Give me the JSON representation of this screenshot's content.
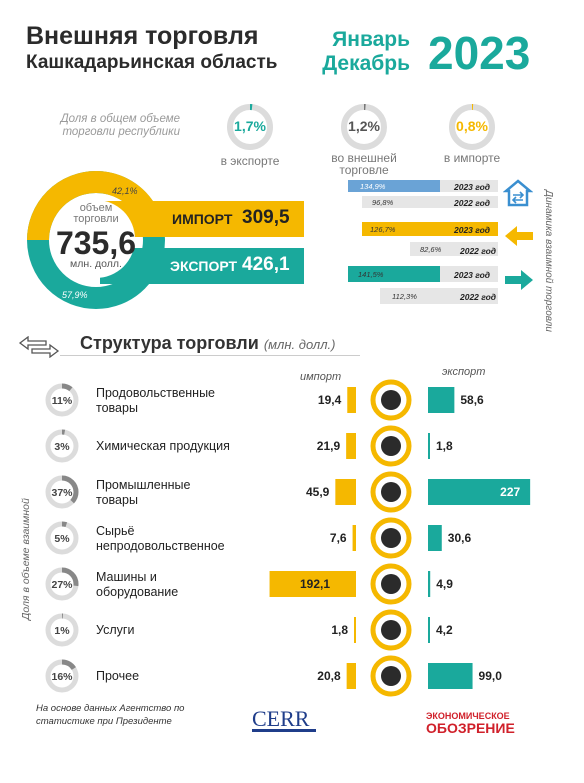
{
  "header": {
    "title_line1": "Внешняя торговля",
    "title_line2": "Кашкадарьинская область",
    "period_line1": "Январь",
    "period_line2": "Декабрь",
    "year": "2023"
  },
  "share": {
    "caption": "Доля в общем объеме торговли республики",
    "items": [
      {
        "value": "1,7%",
        "label": "в экспорте"
      },
      {
        "value": "1,2%",
        "label": "во внешней торговле"
      },
      {
        "value": "0,8%",
        "label": "в импорте"
      }
    ]
  },
  "donut": {
    "center_caption": "объем торговли",
    "center_value": "735,6",
    "center_unit": "млн. долл.",
    "import_pct": "42,1%",
    "export_pct": "57,9%",
    "import_label": "ИМПОРТ",
    "import_value": "309,5",
    "export_label": "ЭКСПОРТ",
    "export_value": "426,1",
    "colors": {
      "import": "#f5b800",
      "export": "#1aa99c"
    }
  },
  "dynamics": {
    "caption": "Динамика взаимной торговли",
    "groups": [
      {
        "name": "total",
        "y2023_pct": "134,9%",
        "y2023_label": "2023 год",
        "y2022_pct": "96,8%",
        "y2022_label": "2022 год"
      },
      {
        "name": "import",
        "y2023_pct": "126,7%",
        "y2023_label": "2023 год",
        "y2022_pct": "82,6%",
        "y2022_label": "2022 год"
      },
      {
        "name": "export",
        "y2023_pct": "141,5%",
        "y2023_label": "2023 год",
        "y2022_pct": "112,3%",
        "y2022_label": "2022 год"
      }
    ]
  },
  "structure": {
    "title": "Структура торговли",
    "unit": "(млн. долл.)",
    "import_header": "импорт",
    "export_header": "экспорт",
    "share_caption": "Доля в объеме взаимной"
  },
  "chart_data": {
    "type": "bar",
    "title": "Структура торговли",
    "unit": "млн. долл.",
    "categories": [
      "Продовольственные товары",
      "Химическая продукция",
      "Промышленные товары",
      "Сырьё непродовольственное",
      "Машины и оборудование",
      "Услуги",
      "Прочее"
    ],
    "share_pct": [
      11,
      3,
      37,
      5,
      27,
      1,
      16
    ],
    "share_labels": [
      "11%",
      "3%",
      "37%",
      "5%",
      "27%",
      "1%",
      "16%"
    ],
    "series": [
      {
        "name": "импорт",
        "values": [
          19.4,
          21.9,
          45.9,
          7.6,
          192.1,
          1.8,
          20.8
        ],
        "labels": [
          "19,4",
          "21,9",
          "45,9",
          "7,6",
          "192,1",
          "1,8",
          "20,8"
        ],
        "color": "#f5b800"
      },
      {
        "name": "экспорт",
        "values": [
          58.6,
          1.8,
          227,
          30.6,
          4.9,
          4.2,
          99.0
        ],
        "labels": [
          "58,6",
          "1,8",
          "227",
          "30,6",
          "4,9",
          "4,2",
          "99,0"
        ],
        "color": "#1aa99c"
      }
    ],
    "category_labels_lines": [
      [
        "Продовольственные",
        "товары"
      ],
      [
        "Химическая продукция"
      ],
      [
        "Промышленные",
        "товары"
      ],
      [
        "Сырьё",
        "непродовольственное"
      ],
      [
        "Машины и",
        "оборудование"
      ],
      [
        "Услуги"
      ],
      [
        "Прочее"
      ]
    ],
    "icons": [
      "food-icon",
      "chemistry-icon",
      "industrial-goods-icon",
      "raw-materials-icon",
      "machinery-gears-icon",
      "services-tools-icon",
      "basket-icon"
    ]
  },
  "footer": {
    "source": "На основе данных Агентство по статистике при Президенте",
    "cerr_logo": "CERR",
    "eo_logo_line1": "ЭКОНОМИЧЕСКОЕ",
    "eo_logo_line2": "ОБОЗРЕНИЕ"
  }
}
